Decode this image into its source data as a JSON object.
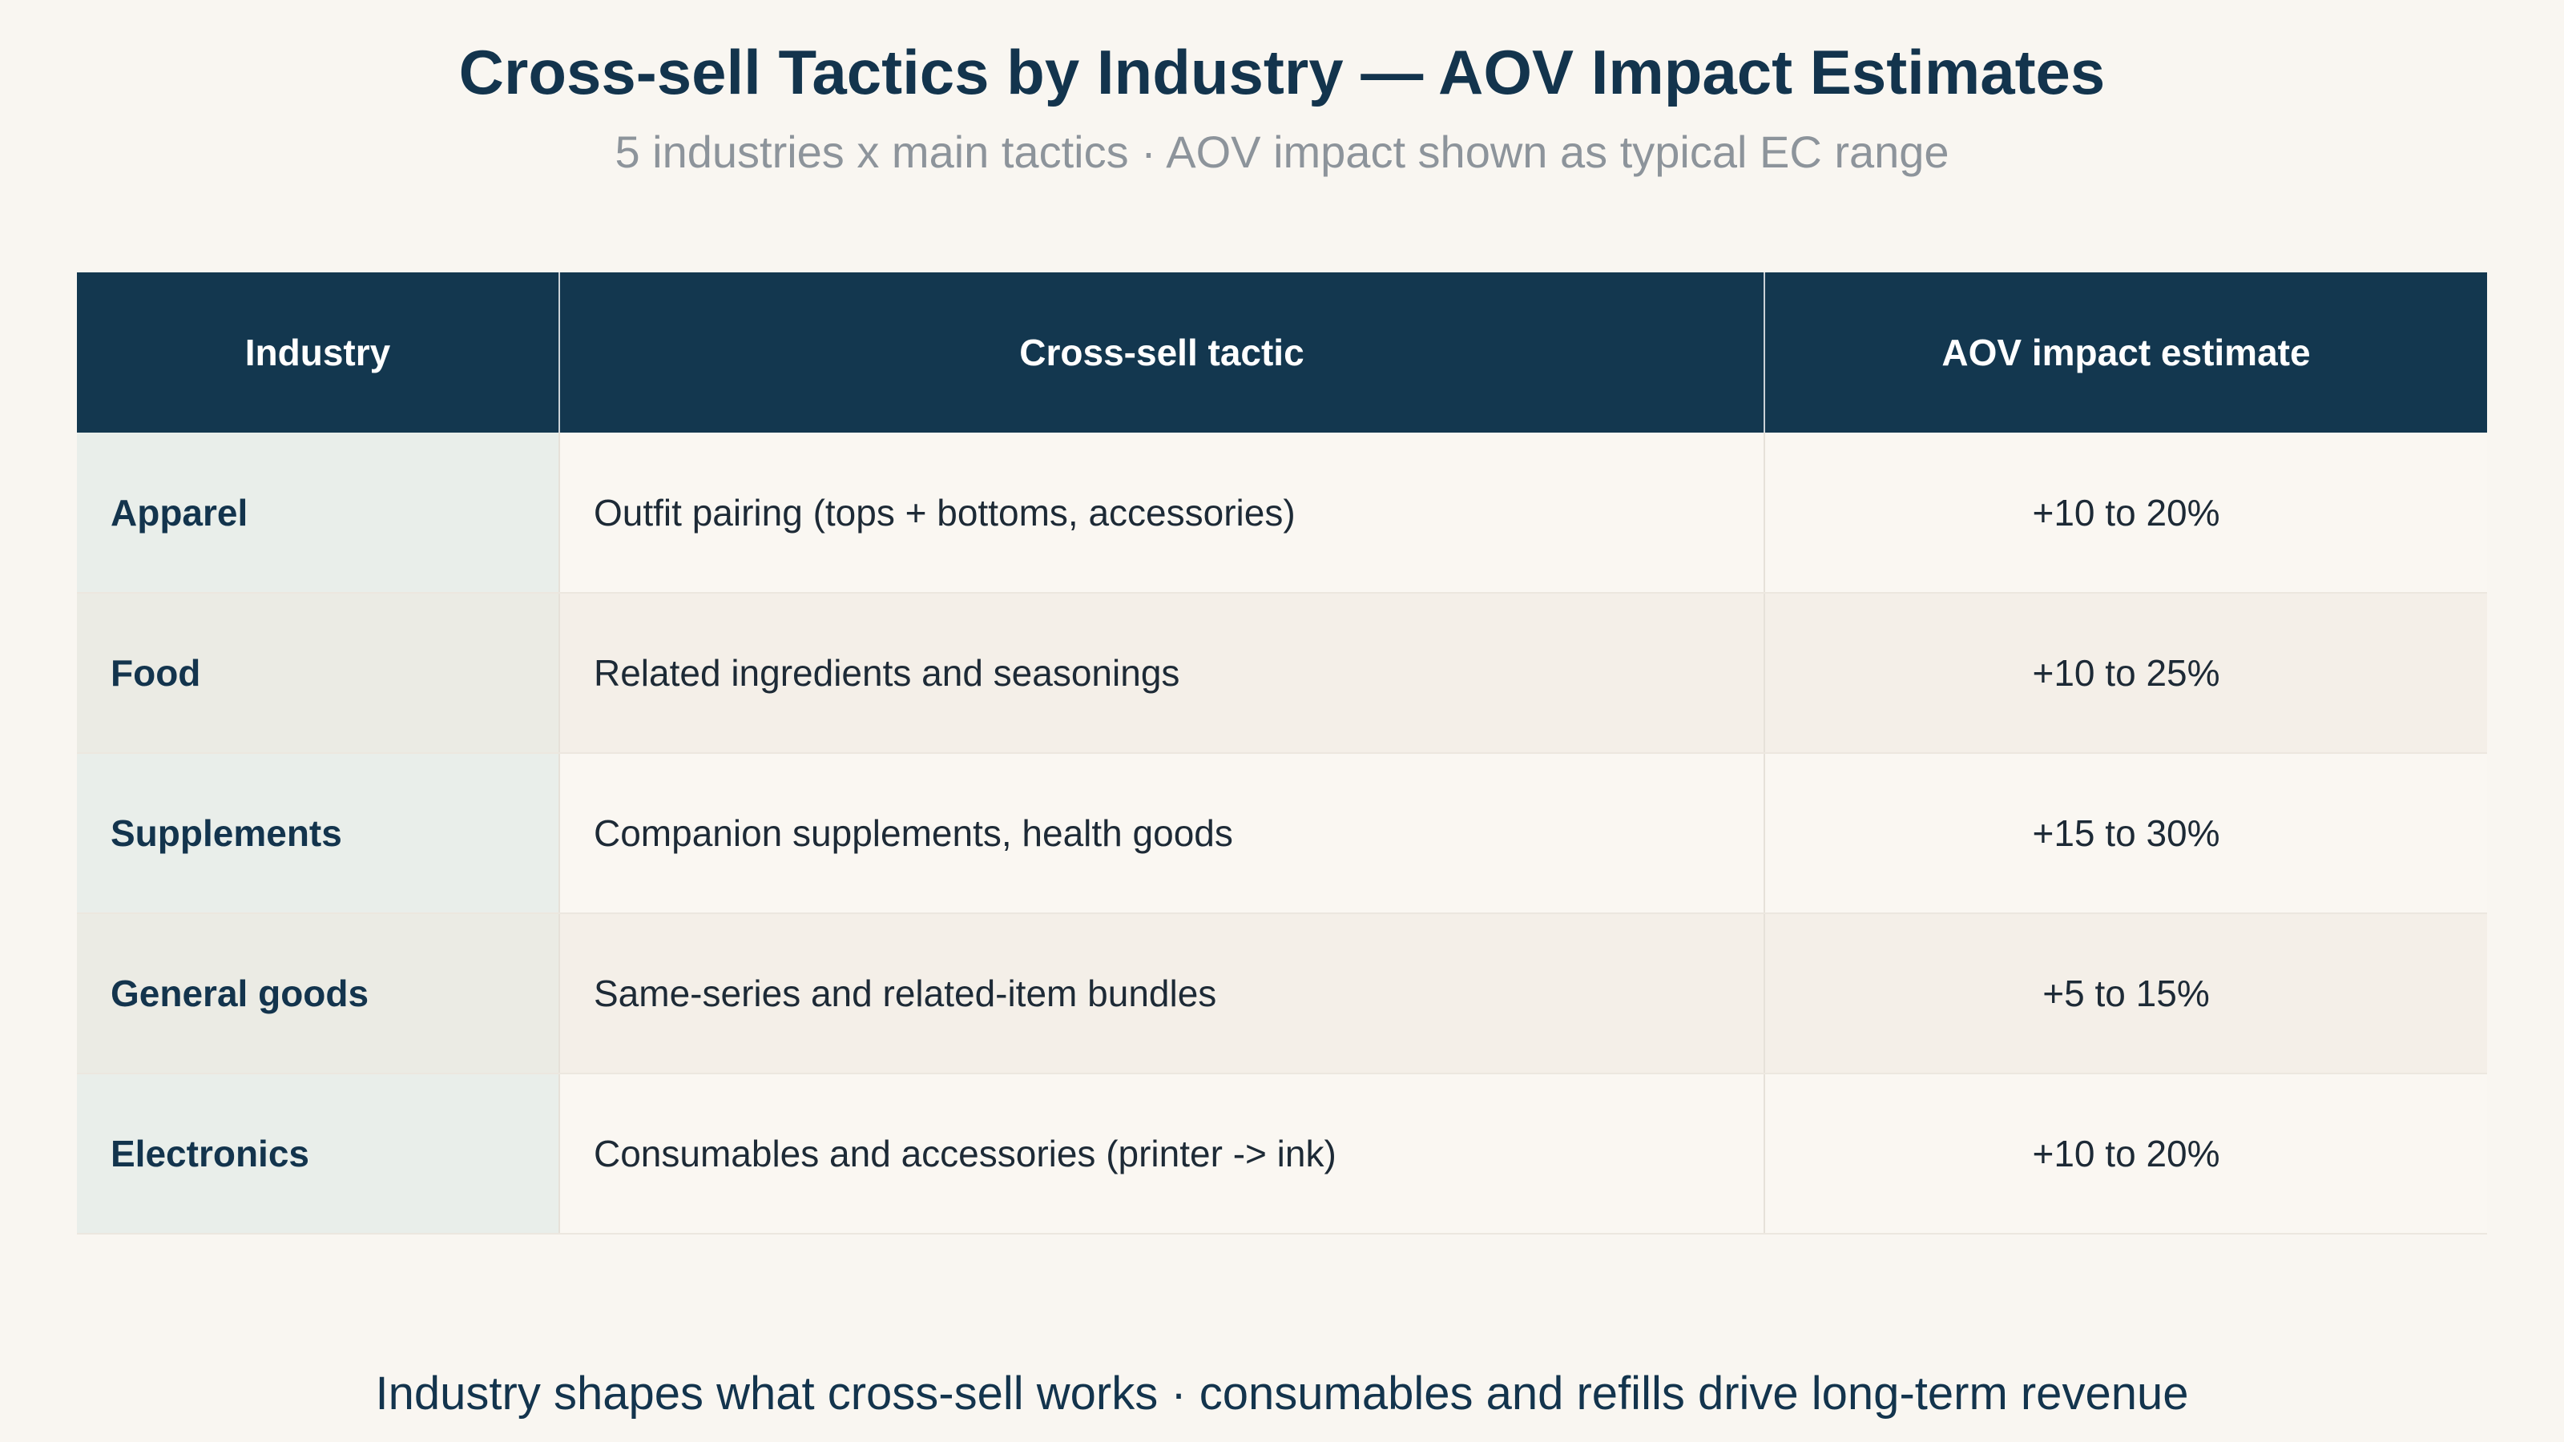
{
  "title": "Cross-sell Tactics by Industry — AOV Impact Estimates",
  "subtitle": "5 industries x main tactics · AOV impact shown as typical EC range",
  "footer": "Industry shapes what cross-sell works · consumables and refills drive long-term revenue",
  "colors": {
    "header_bg": "#13374f",
    "background": "#f9f6f1",
    "title": "#13344d",
    "subtitle": "#8d949b"
  },
  "chart_data": {
    "type": "table",
    "columns": [
      "Industry",
      "Cross-sell tactic",
      "AOV impact estimate"
    ],
    "rows": [
      {
        "industry": "Apparel",
        "tactic": "Outfit pairing (tops + bottoms, accessories)",
        "impact": "+10 to 20%"
      },
      {
        "industry": "Food",
        "tactic": "Related ingredients and seasonings",
        "impact": "+10 to 25%"
      },
      {
        "industry": "Supplements",
        "tactic": "Companion supplements, health goods",
        "impact": "+15 to 30%"
      },
      {
        "industry": "General goods",
        "tactic": "Same-series and related-item bundles",
        "impact": "+5 to 15%"
      },
      {
        "industry": "Electronics",
        "tactic": "Consumables and accessories (printer -> ink)",
        "impact": "+10 to 20%"
      }
    ]
  }
}
